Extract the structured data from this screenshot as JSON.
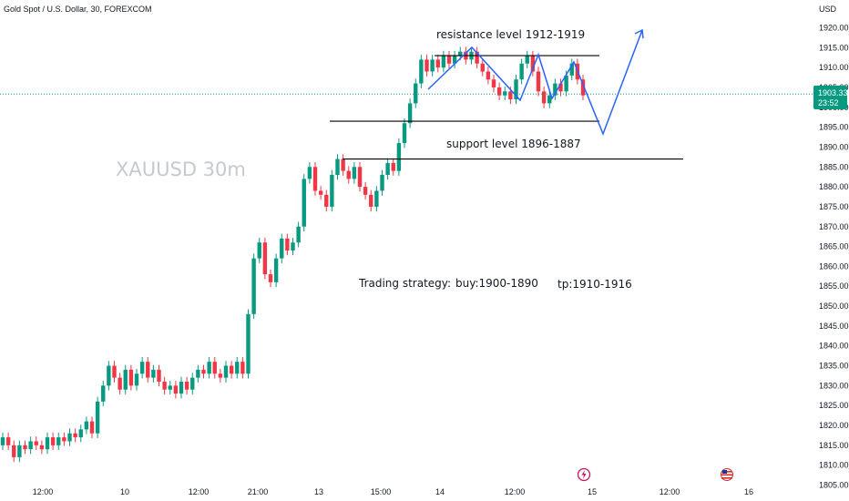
{
  "header": {
    "symbol_title": "Gold Spot / U.S. Dollar, 30, FOREXCOM",
    "currency": "USD"
  },
  "watermark": "XAUUSD 30m",
  "price_tag": {
    "price": "1903.33",
    "timer": "23:52",
    "color": "#089981"
  },
  "colors": {
    "up": "#089981",
    "down": "#f23645",
    "drawing_blue": "#2962ff",
    "level_black": "#000000"
  },
  "annotations": {
    "resistance": "resistance level  1912-1919",
    "support": "support level  1896-1887",
    "strategy_label": "Trading strategy:",
    "strategy_buy": "buy:1900-1890",
    "strategy_tp": "tp:1910-1916"
  },
  "event_icons": [
    "lightning-icon",
    "us-flag-icon"
  ],
  "chart_data": {
    "type": "candlestick",
    "title": "Gold Spot / U.S. Dollar, 30, FOREXCOM",
    "ylabel": "USD",
    "ylim": [
      1803,
      1923
    ],
    "y_ticks": [
      1920,
      1915,
      1910,
      1905,
      1900,
      1895,
      1890,
      1885,
      1880,
      1875,
      1870,
      1865,
      1860,
      1855,
      1850,
      1845,
      1840,
      1835,
      1830,
      1825,
      1820,
      1815,
      1810,
      1805
    ],
    "x_ticks": [
      "12:00",
      "10",
      "12:00",
      "21:00",
      "13",
      "15:00",
      "14",
      "12:00",
      "15",
      "12:00",
      "16"
    ],
    "last_price": 1903.33,
    "levels": [
      {
        "name": "resistance",
        "price": 1913
      },
      {
        "name": "support-upper",
        "price": 1896.5
      },
      {
        "name": "support-lower",
        "price": 1887
      }
    ],
    "candles": [
      [
        1815,
        1817
      ],
      [
        1817,
        1815
      ],
      [
        1815,
        1812
      ],
      [
        1812,
        1815
      ],
      [
        1815,
        1814
      ],
      [
        1814,
        1816
      ],
      [
        1816,
        1815
      ],
      [
        1815,
        1814
      ],
      [
        1814,
        1817
      ],
      [
        1817,
        1815
      ],
      [
        1815,
        1817
      ],
      [
        1817,
        1816
      ],
      [
        1816,
        1818
      ],
      [
        1818,
        1817
      ],
      [
        1817,
        1819
      ],
      [
        1819,
        1821
      ],
      [
        1821,
        1818
      ],
      [
        1818,
        1826
      ],
      [
        1826,
        1830
      ],
      [
        1830,
        1835
      ],
      [
        1835,
        1832
      ],
      [
        1832,
        1829
      ],
      [
        1829,
        1834
      ],
      [
        1834,
        1830
      ],
      [
        1830,
        1833
      ],
      [
        1833,
        1836
      ],
      [
        1836,
        1832
      ],
      [
        1832,
        1834
      ],
      [
        1834,
        1831
      ],
      [
        1831,
        1829
      ],
      [
        1829,
        1830
      ],
      [
        1830,
        1828
      ],
      [
        1828,
        1831
      ],
      [
        1831,
        1829
      ],
      [
        1829,
        1832
      ],
      [
        1832,
        1834
      ],
      [
        1834,
        1833
      ],
      [
        1833,
        1836
      ],
      [
        1836,
        1833
      ],
      [
        1833,
        1832
      ],
      [
        1832,
        1835
      ],
      [
        1835,
        1833
      ],
      [
        1833,
        1836
      ],
      [
        1836,
        1833
      ],
      [
        1833,
        1848
      ],
      [
        1848,
        1862
      ],
      [
        1862,
        1866
      ],
      [
        1866,
        1858
      ],
      [
        1858,
        1856
      ],
      [
        1856,
        1862
      ],
      [
        1862,
        1867
      ],
      [
        1867,
        1864
      ],
      [
        1864,
        1866
      ],
      [
        1866,
        1870
      ],
      [
        1870,
        1882
      ],
      [
        1882,
        1885
      ],
      [
        1885,
        1879
      ],
      [
        1879,
        1878
      ],
      [
        1878,
        1875
      ],
      [
        1875,
        1883
      ],
      [
        1883,
        1887
      ],
      [
        1887,
        1884
      ],
      [
        1884,
        1882
      ],
      [
        1882,
        1885
      ],
      [
        1885,
        1880
      ],
      [
        1880,
        1878
      ],
      [
        1878,
        1875
      ],
      [
        1875,
        1879
      ],
      [
        1879,
        1883
      ],
      [
        1883,
        1886
      ],
      [
        1886,
        1884
      ],
      [
        1884,
        1891
      ],
      [
        1891,
        1896
      ],
      [
        1896,
        1901
      ],
      [
        1901,
        1906
      ],
      [
        1906,
        1912
      ],
      [
        1912,
        1909
      ],
      [
        1909,
        1912
      ],
      [
        1912,
        1910
      ],
      [
        1910,
        1913
      ],
      [
        1913,
        1911
      ],
      [
        1911,
        1913
      ],
      [
        1913,
        1914
      ],
      [
        1914,
        1912
      ],
      [
        1912,
        1914
      ],
      [
        1914,
        1911
      ],
      [
        1911,
        1909
      ],
      [
        1909,
        1907
      ],
      [
        1907,
        1905
      ],
      [
        1905,
        1903
      ],
      [
        1903,
        1904
      ],
      [
        1904,
        1902
      ],
      [
        1902,
        1907
      ],
      [
        1907,
        1911
      ],
      [
        1911,
        1913
      ],
      [
        1913,
        1909
      ],
      [
        1909,
        1904
      ],
      [
        1904,
        1901
      ],
      [
        1901,
        1903
      ],
      [
        1903,
        1906
      ],
      [
        1906,
        1904
      ],
      [
        1904,
        1908
      ],
      [
        1908,
        1911
      ],
      [
        1911,
        1907
      ],
      [
        1907,
        1903
      ]
    ]
  }
}
